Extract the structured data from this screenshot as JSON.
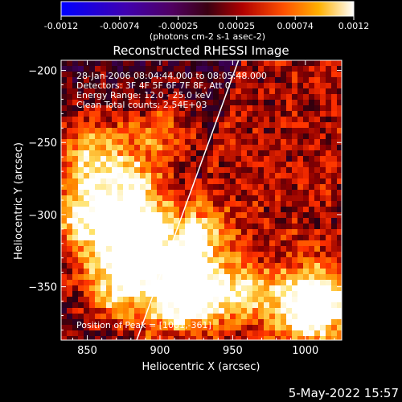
{
  "chart_data": {
    "type": "heatmap",
    "title": "Reconstructed RHESSI Image",
    "xlabel": "Heliocentric X (arcsec)",
    "ylabel": "Heliocentric Y (arcsec)",
    "xlim": [
      832,
      1025
    ],
    "ylim": [
      -387,
      -193
    ],
    "xticks": [
      850,
      900,
      950,
      1000
    ],
    "yticks": [
      -200,
      -250,
      -300,
      -350
    ],
    "colorbar": {
      "min": -0.0012,
      "max": 0.0012,
      "ticks": [
        "-0.0012",
        "-0.00074",
        "-0.00025",
        "0.00025",
        "0.00074",
        "0.0012"
      ],
      "unit_label": "(photons cm-2 s-1 asec-2)",
      "colormap": [
        "#0000ff",
        "#ffffff"
      ]
    },
    "annotations": [
      "28-Jan-2006 08:04:44.000 to 08:05:48.000",
      "Detectors: 3F 4F 5F 6F 7F 8F, Att 0",
      "Energy Range: 12.0 - 25.0 keV",
      "Clean     Total counts: 2.54E+03"
    ],
    "peak_label": "Position of Peak = [1001,-361]",
    "limb_line": [
      [
        884,
        -387
      ],
      [
        954,
        -193
      ]
    ]
  },
  "footer": {
    "date": "5-May-2022 15:57"
  }
}
